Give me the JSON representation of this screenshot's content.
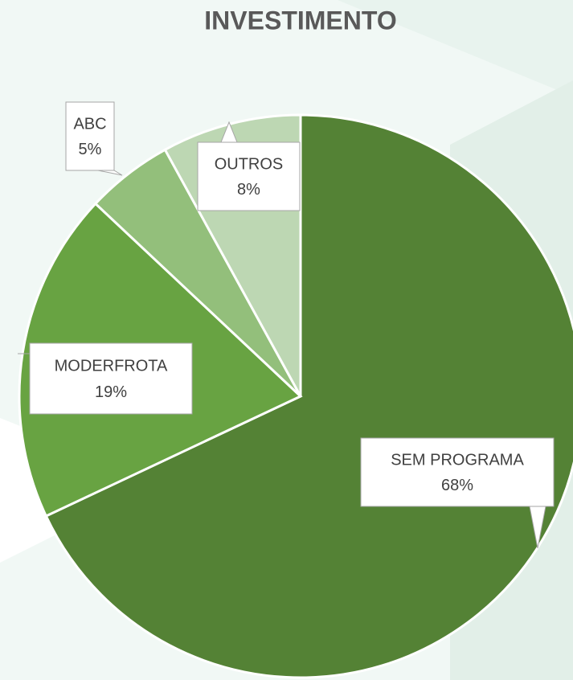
{
  "chart_data": {
    "type": "pie",
    "title": "INVESTIMENTO",
    "categories": [
      "SEM PROGRAMA",
      "MODERFROTA",
      "ABC",
      "OUTROS"
    ],
    "values": [
      68,
      19,
      5,
      8
    ],
    "value_labels": [
      "68%",
      "19%",
      "5%",
      "8%"
    ],
    "colors": [
      "#548235",
      "#68a342",
      "#93bf7b",
      "#bdd7b3"
    ]
  }
}
